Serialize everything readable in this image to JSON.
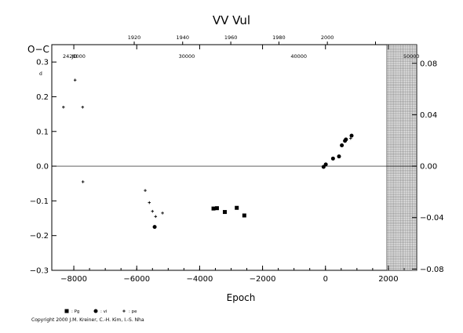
{
  "chart_data": {
    "type": "scatter",
    "title": "VV  Vul",
    "ylabel": "O−C",
    "xlabel": "Epoch",
    "x_ticks": [
      -8000,
      -6000,
      -4000,
      -2000,
      0,
      2000
    ],
    "x_tick_labels": [
      "−8000",
      "−6000",
      "−4000",
      "−2000",
      "0",
      "2000"
    ],
    "xlim": [
      -8700,
      2900
    ],
    "ylim": [
      -0.3,
      0.35
    ],
    "y_ticks": [
      -0.3,
      -0.2,
      -0.1,
      0.0,
      0.1,
      0.2,
      0.3
    ],
    "y_tick_labels": [
      "−0.3",
      "−0.2",
      "−0.1",
      "0.0",
      "0.1",
      "0.2",
      "0.3"
    ],
    "y_unit_mark": "d",
    "right_axis": {
      "ticks": [
        -0.08,
        -0.04,
        0.0,
        0.04,
        0.08
      ],
      "tick_labels": [
        "−0.08",
        "−0.04",
        "0.00",
        "0.04",
        "0.08"
      ],
      "range": [
        -0.081,
        0.0945
      ]
    },
    "top_axis_years": {
      "ticks": [
        -6080,
        -4540,
        -3010,
        -1480,
        60,
        1590
      ],
      "tick_labels": [
        "1920",
        "1940",
        "1960",
        "1980",
        "2000",
        ""
      ],
      "labels": [
        "1920",
        "1940",
        "1960",
        "1980",
        "2000"
      ]
    },
    "top_axis_jd": {
      "ticks": [
        -7990,
        -4410,
        -850,
        2730
      ],
      "prefix": "JD",
      "tick_labels": [
        "2420000",
        "30000",
        "40000",
        "50000"
      ]
    },
    "shaded_region_x": [
      1950,
      2900
    ],
    "series": [
      {
        "name": "Pg",
        "marker": "square",
        "points": [
          [
            -3560,
            -0.122
          ],
          [
            -3450,
            -0.121
          ],
          [
            -3200,
            -0.132
          ],
          [
            -2820,
            -0.12
          ],
          [
            -2580,
            -0.142
          ]
        ]
      },
      {
        "name": "vi",
        "marker": "circle",
        "points": [
          [
            -5430,
            -0.175
          ],
          [
            -60,
            -0.002
          ],
          [
            10,
            0.005
          ],
          [
            240,
            0.022
          ],
          [
            430,
            0.028
          ],
          [
            520,
            0.06
          ],
          [
            620,
            0.073
          ],
          [
            650,
            0.077
          ],
          [
            830,
            0.088
          ]
        ]
      },
      {
        "name": "pe",
        "marker": "plus",
        "points": [
          [
            -8330,
            0.17
          ],
          [
            -7960,
            0.248
          ],
          [
            -7720,
            0.17
          ],
          [
            -7710,
            -0.045
          ],
          [
            -5730,
            -0.07
          ],
          [
            -5600,
            -0.105
          ],
          [
            -5500,
            -0.13
          ],
          [
            -5400,
            -0.145
          ],
          [
            -5180,
            -0.135
          ],
          [
            800,
            0.08
          ]
        ]
      }
    ],
    "legend": [
      {
        "marker": "square",
        "label": ": Pg"
      },
      {
        "marker": "circle",
        "label": ": vi"
      },
      {
        "marker": "plus",
        "label": ": pe"
      }
    ],
    "legend_position": "bottom-left"
  },
  "footer": {
    "copyright": "Copyright 2000 J.M. Kreiner, C.-H. Kim, I.-S. Nha"
  }
}
